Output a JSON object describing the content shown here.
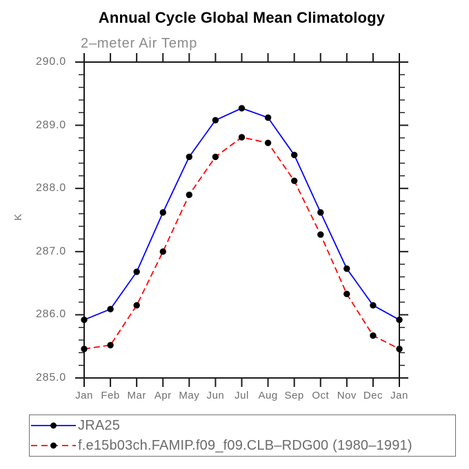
{
  "chart_data": {
    "type": "line",
    "title": "Annual Cycle Global Mean Climatology",
    "subtitle": "2–meter Air Temp",
    "xlabel": "",
    "ylabel": "K",
    "categories": [
      "Jan",
      "Feb",
      "Mar",
      "Apr",
      "May",
      "Jun",
      "Jul",
      "Aug",
      "Sep",
      "Oct",
      "Nov",
      "Dec",
      "Jan"
    ],
    "ylim": [
      285.0,
      290.0
    ],
    "y_major_step": 1.0,
    "y_minor_step": 0.2,
    "y_tick_labels": [
      "285.0",
      "286.0",
      "287.0",
      "288.0",
      "289.0",
      "290.0"
    ],
    "grid": false,
    "legend_position": "bottom-left-box",
    "marker": "filled-circle",
    "marker_color": "#000000",
    "axis_color": "#1a1a1a",
    "series": [
      {
        "name": "JRA25",
        "color": "#0000ff",
        "style": "solid",
        "values": [
          285.92,
          286.09,
          286.68,
          287.62,
          288.5,
          289.08,
          289.27,
          289.12,
          288.53,
          287.62,
          286.73,
          286.15,
          285.92
        ]
      },
      {
        "name": "f.e15b03ch.FAMIP.f09_f09.CLB–RDG00 (1980–1991)",
        "color": "#ff0000",
        "style": "dashed",
        "values": [
          285.46,
          285.52,
          286.15,
          287.0,
          287.9,
          288.5,
          288.81,
          288.72,
          288.12,
          287.27,
          286.33,
          285.67,
          285.46
        ]
      }
    ]
  }
}
